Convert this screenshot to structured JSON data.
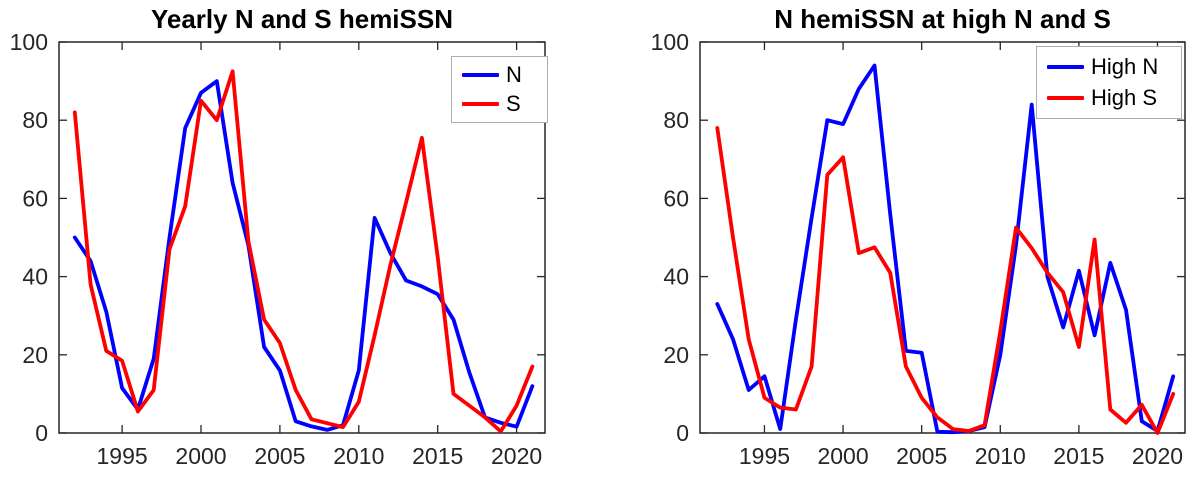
{
  "figure": {
    "background": "#ffffff",
    "axis_color": "#262626",
    "tick_label_color": "#262626",
    "tick_label_font_px": 23
  },
  "chart_data": [
    {
      "type": "line",
      "title": "Yearly N and S hemiSSN",
      "xlabel": "",
      "ylabel": "",
      "x": [
        1992,
        1993,
        1994,
        1995,
        1996,
        1997,
        1998,
        1999,
        2000,
        2001,
        2002,
        2003,
        2004,
        2005,
        2006,
        2007,
        2008,
        2009,
        2010,
        2011,
        2012,
        2013,
        2014,
        2015,
        2016,
        2017,
        2018,
        2019,
        2020,
        2021
      ],
      "series": [
        {
          "name": "N",
          "color": "#0000ff",
          "values": [
            50,
            44,
            31,
            11.5,
            6,
            19,
            50,
            78,
            87,
            90,
            64,
            48,
            22,
            16,
            3,
            1.7,
            0.8,
            2,
            16,
            55,
            46,
            39,
            37.5,
            35.5,
            29,
            15.5,
            4,
            2.6,
            1.6,
            12
          ]
        },
        {
          "name": "S",
          "color": "#ff0000",
          "values": [
            82,
            38,
            21,
            18.5,
            5.5,
            11,
            47,
            58,
            85,
            80,
            92.5,
            49,
            29,
            23,
            11,
            3.5,
            2.5,
            1.5,
            8,
            25,
            43,
            59,
            75.5,
            45,
            10,
            7,
            4,
            0.4,
            7,
            17
          ]
        }
      ],
      "xticks": [
        1995,
        2000,
        2005,
        2010,
        2015,
        2020
      ],
      "yticks": [
        0,
        20,
        40,
        60,
        80,
        100
      ],
      "xlim": [
        1991,
        2021.8
      ],
      "ylim": [
        0,
        100
      ],
      "grid": false,
      "legend_position": "top-right"
    },
    {
      "type": "line",
      "title": "N hemiSSN at high N and S",
      "xlabel": "",
      "ylabel": "",
      "x": [
        1992,
        1993,
        1994,
        1995,
        1996,
        1997,
        1998,
        1999,
        2000,
        2001,
        2002,
        2003,
        2004,
        2005,
        2006,
        2007,
        2008,
        2009,
        2010,
        2011,
        2012,
        2013,
        2014,
        2015,
        2016,
        2017,
        2018,
        2019,
        2020,
        2021
      ],
      "series": [
        {
          "name": "High N",
          "color": "#0000ff",
          "values": [
            33,
            24,
            11,
            14.5,
            1,
            29,
            55,
            80,
            79,
            88,
            94,
            56,
            21,
            20.5,
            0.3,
            0.2,
            0.5,
            1.5,
            20,
            48,
            84,
            40,
            27,
            41.5,
            25,
            43.5,
            31.5,
            3,
            0.5,
            14.5
          ]
        },
        {
          "name": "High S",
          "color": "#ff0000",
          "values": [
            78,
            50,
            24,
            9,
            6.5,
            6,
            17,
            66,
            70.5,
            46,
            47.5,
            41,
            17,
            9,
            4,
            1,
            0.5,
            2,
            26,
            52.5,
            47.3,
            41,
            36,
            22,
            49.5,
            6,
            2.6,
            7.2,
            0,
            10
          ]
        }
      ],
      "xticks": [
        1995,
        2000,
        2005,
        2010,
        2015,
        2020
      ],
      "yticks": [
        0,
        20,
        40,
        60,
        80,
        100
      ],
      "xlim": [
        1990.9,
        2021.75
      ],
      "ylim": [
        0,
        100
      ],
      "grid": false,
      "legend_position": "top-right"
    }
  ]
}
